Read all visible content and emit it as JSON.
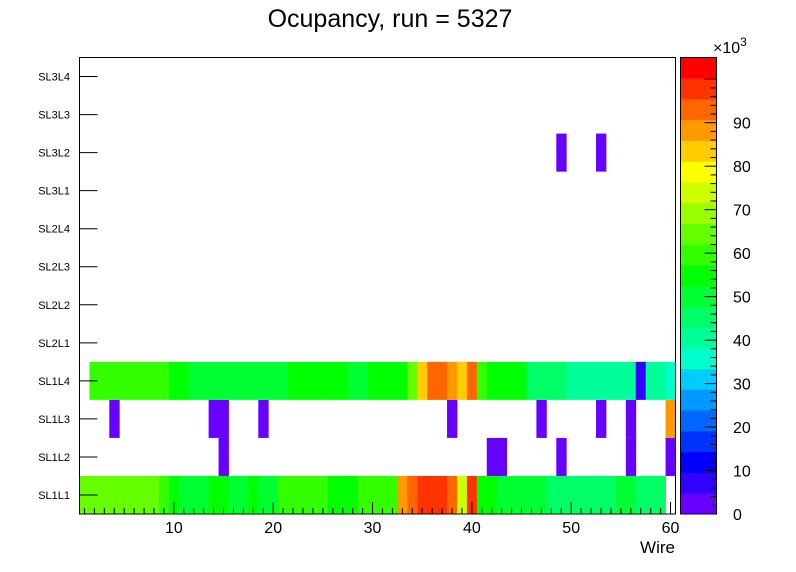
{
  "chart_data": {
    "type": "heatmap",
    "title": "Ocupancy, run = 5327",
    "xlabel": "Wire",
    "ylabel": "",
    "xlim": [
      0.5,
      60.5
    ],
    "x_ticks": [
      "10",
      "20",
      "30",
      "40",
      "50",
      "60"
    ],
    "y_categories": [
      "SL1L1",
      "SL1L2",
      "SL1L3",
      "SL1L4",
      "SL2L1",
      "SL2L2",
      "SL2L3",
      "SL2L4",
      "SL3L1",
      "SL3L2",
      "SL3L3",
      "SL3L4"
    ],
    "z_range": [
      0,
      105000
    ],
    "z_multiplier": "×10",
    "z_exponent": "3",
    "z_ticks": [
      "0",
      "10",
      "20",
      "30",
      "40",
      "50",
      "60",
      "70",
      "80",
      "90"
    ],
    "palette": [
      "#6600ff",
      "#3300ff",
      "#0000ff",
      "#0033ff",
      "#0066ff",
      "#0099ff",
      "#00ccff",
      "#00ffcc",
      "#00ff99",
      "#00ff66",
      "#00ff33",
      "#00ff00",
      "#33ff00",
      "#66ff00",
      "#99ff00",
      "#ccff00",
      "#ffff00",
      "#ffcc00",
      "#ff9900",
      "#ff6600",
      "#ff3300",
      "#ff0000"
    ],
    "rows": [
      {
        "layer": "SL1L1",
        "values": [
          65000,
          65000,
          65000,
          65000,
          65000,
          65000,
          65000,
          65000,
          60000,
          55000,
          52000,
          52000,
          52000,
          55000,
          55000,
          52000,
          52000,
          55000,
          52000,
          52000,
          60000,
          60000,
          60000,
          60000,
          60000,
          55000,
          55000,
          55000,
          62000,
          62000,
          62000,
          62000,
          88000,
          92000,
          98000,
          98000,
          98000,
          92000,
          75000,
          98000,
          55000,
          55000,
          52000,
          52000,
          52000,
          52000,
          52000,
          45000,
          45000,
          45000,
          45000,
          45000,
          45000,
          45000,
          50000,
          50000,
          45000,
          45000,
          45000,
          0
        ]
      },
      {
        "layer": "SL1L2",
        "values": [
          0,
          0,
          0,
          0,
          0,
          0,
          0,
          0,
          0,
          0,
          0,
          0,
          0,
          0,
          2000,
          0,
          0,
          0,
          0,
          0,
          0,
          0,
          0,
          0,
          0,
          0,
          0,
          0,
          0,
          0,
          0,
          0,
          0,
          0,
          0,
          0,
          0,
          0,
          0,
          0,
          0,
          2000,
          2000,
          0,
          0,
          0,
          0,
          0,
          2000,
          0,
          0,
          0,
          0,
          0,
          0,
          2000,
          0,
          0,
          0,
          2000
        ]
      },
      {
        "layer": "SL1L3",
        "values": [
          0,
          0,
          0,
          2000,
          0,
          0,
          0,
          0,
          0,
          0,
          0,
          0,
          0,
          2000,
          2000,
          0,
          0,
          0,
          2000,
          0,
          0,
          0,
          0,
          0,
          0,
          0,
          0,
          0,
          0,
          0,
          0,
          0,
          0,
          0,
          0,
          0,
          0,
          2000,
          0,
          0,
          0,
          0,
          0,
          0,
          0,
          0,
          2000,
          0,
          0,
          0,
          0,
          0,
          2000,
          0,
          0,
          2000,
          0,
          0,
          0,
          88000
        ]
      },
      {
        "layer": "SL1L4",
        "values": [
          0,
          58000,
          58000,
          58000,
          62000,
          62000,
          62000,
          62000,
          62000,
          55000,
          55000,
          50000,
          50000,
          52000,
          52000,
          52000,
          48000,
          48000,
          52000,
          52000,
          52000,
          55000,
          55000,
          55000,
          55000,
          55000,
          55000,
          52000,
          52000,
          55000,
          55000,
          55000,
          55000,
          65000,
          85000,
          95000,
          95000,
          90000,
          85000,
          95000,
          62000,
          55000,
          55000,
          55000,
          55000,
          45000,
          45000,
          45000,
          45000,
          42000,
          42000,
          42000,
          42000,
          42000,
          42000,
          42000,
          5000,
          40000,
          40000,
          35000
        ]
      },
      {
        "layer": "SL2L1",
        "values": []
      },
      {
        "layer": "SL2L2",
        "values": []
      },
      {
        "layer": "SL2L3",
        "values": []
      },
      {
        "layer": "SL2L4",
        "values": []
      },
      {
        "layer": "SL3L1",
        "values": []
      },
      {
        "layer": "SL3L2",
        "values": [
          0,
          0,
          0,
          0,
          0,
          0,
          0,
          0,
          0,
          0,
          0,
          0,
          0,
          0,
          0,
          0,
          0,
          0,
          0,
          0,
          0,
          0,
          0,
          0,
          0,
          0,
          0,
          0,
          0,
          0,
          0,
          0,
          0,
          0,
          0,
          0,
          0,
          0,
          0,
          0,
          0,
          0,
          0,
          0,
          0,
          0,
          0,
          0,
          2000,
          0,
          0,
          0,
          2000,
          0,
          0,
          0,
          0,
          0,
          0,
          0
        ]
      },
      {
        "layer": "SL3L3",
        "values": []
      },
      {
        "layer": "SL3L4",
        "values": []
      }
    ]
  }
}
